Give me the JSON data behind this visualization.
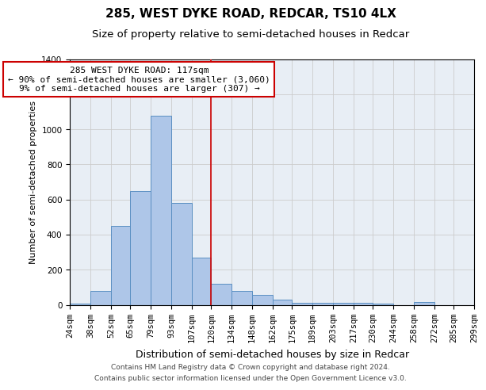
{
  "title": "285, WEST DYKE ROAD, REDCAR, TS10 4LX",
  "subtitle": "Size of property relative to semi-detached houses in Redcar",
  "xlabel": "Distribution of semi-detached houses by size in Redcar",
  "ylabel": "Number of semi-detached properties",
  "footer1": "Contains HM Land Registry data © Crown copyright and database right 2024.",
  "footer2": "Contains public sector information licensed under the Open Government Licence v3.0.",
  "annotation_title": "285 WEST DYKE ROAD: 117sqm",
  "annotation_line1": "← 90% of semi-detached houses are smaller (3,060)",
  "annotation_line2": "9% of semi-detached houses are larger (307) →",
  "property_size": 117,
  "bin_edges": [
    24,
    38,
    52,
    65,
    79,
    93,
    107,
    120,
    134,
    148,
    162,
    175,
    189,
    203,
    217,
    230,
    244,
    258,
    272,
    285,
    299
  ],
  "bar_heights": [
    5,
    80,
    450,
    650,
    1075,
    580,
    270,
    120,
    80,
    55,
    30,
    10,
    10,
    10,
    10,
    5,
    0,
    15,
    0,
    0
  ],
  "bar_color": "#aec6e8",
  "bar_edge_color": "#5a8fc2",
  "vline_color": "#cc0000",
  "vline_x": 120,
  "annotation_box_edge": "#cc0000",
  "ylim": [
    0,
    1400
  ],
  "yticks": [
    0,
    200,
    400,
    600,
    800,
    1000,
    1200,
    1400
  ],
  "grid_color": "#cccccc",
  "bg_color": "#e8eef5",
  "title_fontsize": 11,
  "subtitle_fontsize": 9.5,
  "xlabel_fontsize": 9,
  "ylabel_fontsize": 8,
  "tick_fontsize": 7.5,
  "annotation_fontsize": 8,
  "footer_fontsize": 6.5
}
